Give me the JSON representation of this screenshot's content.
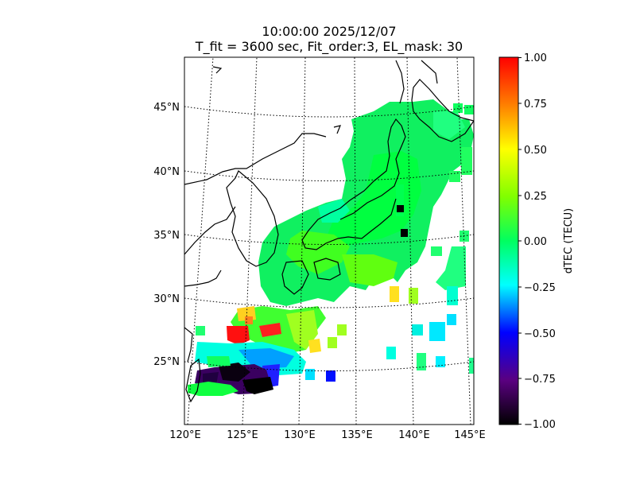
{
  "title": {
    "line1": "10:00:00 2025/12/07",
    "line2": "T_fit = 3600 sec, Fit_order:3, EL_mask: 30"
  },
  "map": {
    "lon_labels": [
      "120°E",
      "125°E",
      "130°E",
      "135°E",
      "140°E",
      "145°E"
    ],
    "lat_labels": [
      "25°N",
      "30°N",
      "35°N",
      "40°N",
      "45°N"
    ]
  },
  "colorbar": {
    "label": "dTEC (TECU)",
    "range": [
      -1.0,
      1.0
    ],
    "ticks": [
      "1.00",
      "0.75",
      "0.50",
      "0.25",
      "0.00",
      "−0.25",
      "−0.50",
      "−0.75",
      "−1.00"
    ]
  },
  "colors": {
    "colormap": [
      "#000000",
      "#5a0080",
      "#0000ff",
      "#00ffff",
      "#00ff60",
      "#80ff00",
      "#ffff00",
      "#ff8000",
      "#ff0000"
    ]
  }
}
